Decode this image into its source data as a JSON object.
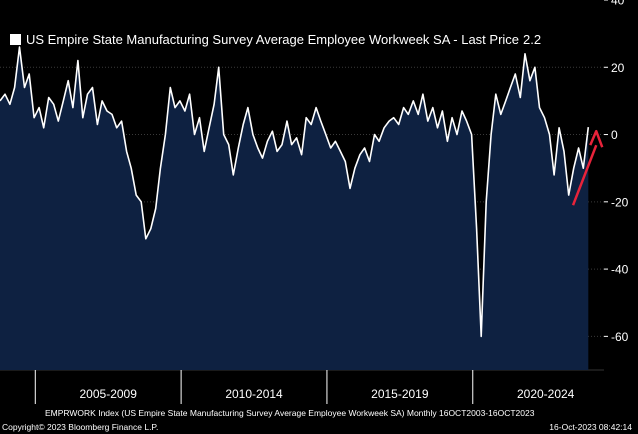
{
  "chart_data": {
    "type": "area",
    "title": "US Empire State Manufacturing Survey Average Employee Workweek SA - Last Price",
    "last_price": "2.2",
    "ylim": [
      -70,
      40
    ],
    "yticks": [
      40,
      20,
      0,
      -20,
      -40,
      -60
    ],
    "period_labels": [
      "2005-2009",
      "2010-2014",
      "2015-2019",
      "2020-2024"
    ],
    "x_start": 2003.79,
    "x_end": 2024.5,
    "series": [
      {
        "name": "EMPRWORK Index",
        "points": [
          [
            2003.79,
            10
          ],
          [
            2003.96,
            12
          ],
          [
            2004.13,
            9
          ],
          [
            2004.29,
            14
          ],
          [
            2004.46,
            26
          ],
          [
            2004.63,
            14
          ],
          [
            2004.79,
            18
          ],
          [
            2004.96,
            5
          ],
          [
            2005.13,
            8
          ],
          [
            2005.29,
            2
          ],
          [
            2005.46,
            11
          ],
          [
            2005.63,
            9
          ],
          [
            2005.79,
            4
          ],
          [
            2005.96,
            10
          ],
          [
            2006.13,
            16
          ],
          [
            2006.29,
            8
          ],
          [
            2006.46,
            22
          ],
          [
            2006.63,
            5
          ],
          [
            2006.79,
            12
          ],
          [
            2006.96,
            14
          ],
          [
            2007.13,
            3
          ],
          [
            2007.29,
            10
          ],
          [
            2007.46,
            7
          ],
          [
            2007.63,
            6
          ],
          [
            2007.79,
            2
          ],
          [
            2007.96,
            4
          ],
          [
            2008.13,
            -5
          ],
          [
            2008.29,
            -10
          ],
          [
            2008.46,
            -18
          ],
          [
            2008.63,
            -20
          ],
          [
            2008.79,
            -31
          ],
          [
            2008.96,
            -28
          ],
          [
            2009.13,
            -22
          ],
          [
            2009.29,
            -10
          ],
          [
            2009.46,
            0
          ],
          [
            2009.63,
            14
          ],
          [
            2009.79,
            8
          ],
          [
            2009.96,
            10
          ],
          [
            2010.13,
            7
          ],
          [
            2010.29,
            12
          ],
          [
            2010.46,
            0
          ],
          [
            2010.63,
            5
          ],
          [
            2010.79,
            -5
          ],
          [
            2010.96,
            2
          ],
          [
            2011.13,
            9
          ],
          [
            2011.29,
            20
          ],
          [
            2011.46,
            0
          ],
          [
            2011.63,
            -3
          ],
          [
            2011.79,
            -12
          ],
          [
            2011.96,
            -4
          ],
          [
            2012.13,
            3
          ],
          [
            2012.29,
            8
          ],
          [
            2012.46,
            0
          ],
          [
            2012.63,
            -4
          ],
          [
            2012.79,
            -7
          ],
          [
            2012.96,
            -2
          ],
          [
            2013.13,
            1
          ],
          [
            2013.29,
            -5
          ],
          [
            2013.46,
            -3
          ],
          [
            2013.63,
            4
          ],
          [
            2013.79,
            -3
          ],
          [
            2013.96,
            -1
          ],
          [
            2014.13,
            -6
          ],
          [
            2014.29,
            5
          ],
          [
            2014.46,
            3
          ],
          [
            2014.63,
            8
          ],
          [
            2014.79,
            4
          ],
          [
            2014.96,
            0
          ],
          [
            2015.13,
            -4
          ],
          [
            2015.29,
            -2
          ],
          [
            2015.46,
            -5
          ],
          [
            2015.63,
            -8
          ],
          [
            2015.79,
            -16
          ],
          [
            2015.96,
            -10
          ],
          [
            2016.13,
            -6
          ],
          [
            2016.29,
            -4
          ],
          [
            2016.46,
            -8
          ],
          [
            2016.63,
            0
          ],
          [
            2016.79,
            -2
          ],
          [
            2016.96,
            2
          ],
          [
            2017.13,
            4
          ],
          [
            2017.29,
            5
          ],
          [
            2017.46,
            3
          ],
          [
            2017.63,
            8
          ],
          [
            2017.79,
            6
          ],
          [
            2017.96,
            10
          ],
          [
            2018.13,
            6
          ],
          [
            2018.29,
            12
          ],
          [
            2018.46,
            4
          ],
          [
            2018.63,
            8
          ],
          [
            2018.79,
            2
          ],
          [
            2018.96,
            7
          ],
          [
            2019.13,
            -2
          ],
          [
            2019.29,
            5
          ],
          [
            2019.46,
            0
          ],
          [
            2019.63,
            7
          ],
          [
            2019.79,
            4
          ],
          [
            2019.96,
            0
          ],
          [
            2020.13,
            -28
          ],
          [
            2020.29,
            -60
          ],
          [
            2020.46,
            -20
          ],
          [
            2020.63,
            0
          ],
          [
            2020.79,
            12
          ],
          [
            2020.96,
            6
          ],
          [
            2021.13,
            10
          ],
          [
            2021.29,
            14
          ],
          [
            2021.46,
            18
          ],
          [
            2021.63,
            11
          ],
          [
            2021.79,
            24
          ],
          [
            2021.96,
            16
          ],
          [
            2022.13,
            20
          ],
          [
            2022.29,
            8
          ],
          [
            2022.46,
            5
          ],
          [
            2022.63,
            0
          ],
          [
            2022.79,
            -12
          ],
          [
            2022.96,
            2
          ],
          [
            2023.13,
            -5
          ],
          [
            2023.29,
            -18
          ],
          [
            2023.46,
            -10
          ],
          [
            2023.63,
            -4
          ],
          [
            2023.79,
            -10
          ],
          [
            2023.96,
            2.2
          ]
        ]
      }
    ],
    "colors": {
      "line": "#ffffff",
      "fill": "#0e2141",
      "grid": "#3a3a3a",
      "arrow": "#e8233a"
    },
    "annotation": "red arrow pointing to the latest value"
  },
  "footer": {
    "source": "EMPRWORK Index (US Empire State Manufacturing Survey Average Employee Workweek SA)  Monthly 16OCT2003-16OCT2023",
    "copyright": "Copyright© 2023 Bloomberg Finance L.P.",
    "timestamp": "16-Oct-2023 08:42:14"
  }
}
